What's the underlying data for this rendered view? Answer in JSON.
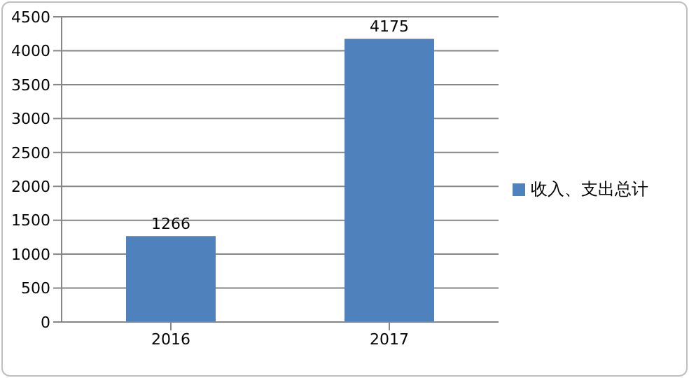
{
  "chart_data": {
    "type": "bar",
    "categories": [
      "2016",
      "2017"
    ],
    "series": [
      {
        "name": "收入、支出总计",
        "color": "#4f81bd",
        "values": [
          1266,
          4175
        ]
      }
    ],
    "ylim": [
      0,
      4500
    ],
    "yticks": [
      0,
      500,
      1000,
      1500,
      2000,
      2500,
      3000,
      3500,
      4000,
      4500
    ],
    "grid": "y",
    "legend": "right",
    "data_labels": true
  }
}
